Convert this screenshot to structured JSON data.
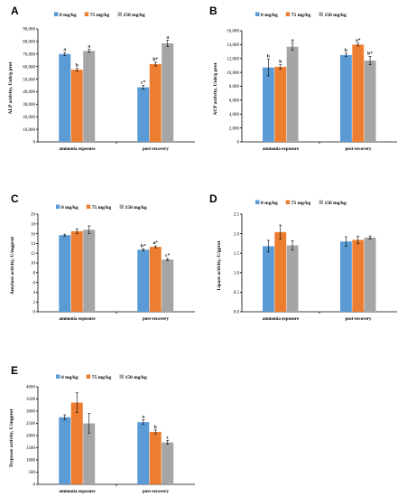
{
  "colors": {
    "series0": "#5b9bd5",
    "series1": "#ed7d31",
    "series2": "#a5a5a5"
  },
  "chart_data": [
    {
      "type": "bar",
      "panel": "A",
      "ylabel": "ALP activity, Unit/g prot",
      "categories": [
        "ammonia exposure",
        "post-recovery"
      ],
      "ylim": [
        0,
        90000
      ],
      "yticks": [
        0,
        10000,
        20000,
        30000,
        40000,
        50000,
        60000,
        70000,
        80000,
        90000
      ],
      "ytick_labels": [
        "0",
        "10,000",
        "20,000",
        "30,000",
        "40,000",
        "50,000",
        "60,000",
        "70,000",
        "80,000",
        "90,000"
      ],
      "series": [
        {
          "name": "0 mg/kg",
          "values": [
            70000,
            43500
          ],
          "errors": [
            1200,
            1500
          ],
          "labels": [
            "a",
            "c*"
          ]
        },
        {
          "name": "75 mg/kg",
          "values": [
            57500,
            62000
          ],
          "errors": [
            1200,
            1500
          ],
          "labels": [
            "b",
            "b*"
          ]
        },
        {
          "name": "150 mg/kg",
          "values": [
            72500,
            78500
          ],
          "errors": [
            1200,
            2500
          ],
          "labels": [
            "a",
            "a"
          ]
        }
      ]
    },
    {
      "type": "bar",
      "panel": "B",
      "ylabel": "ACP activity, Unit/g prot",
      "categories": [
        "ammonia exposure",
        "post-recovery"
      ],
      "ylim": [
        0,
        16000
      ],
      "yticks": [
        0,
        2000,
        4000,
        6000,
        8000,
        10000,
        12000,
        14000,
        16000
      ],
      "ytick_labels": [
        "0",
        "2,000",
        "4,000",
        "6,000",
        "8,000",
        "10,000",
        "12,000",
        "14,000",
        "16,000"
      ],
      "series": [
        {
          "name": "0 mg/kg",
          "values": [
            10700,
            12500
          ],
          "errors": [
            1200,
            250
          ],
          "labels": [
            "b",
            "b"
          ]
        },
        {
          "name": "75 mg/kg",
          "values": [
            10800,
            14000
          ],
          "errors": [
            300,
            200
          ],
          "labels": [
            "b",
            "a*"
          ]
        },
        {
          "name": "150 mg/kg",
          "values": [
            13700,
            11700
          ],
          "errors": [
            500,
            600
          ],
          "labels": [
            "a",
            "b*"
          ]
        }
      ]
    },
    {
      "type": "bar",
      "panel": "C",
      "ylabel": "Amylase activity, U/mgprot",
      "categories": [
        "ammonia exposure",
        "post-recovery"
      ],
      "ylim": [
        0,
        20
      ],
      "yticks": [
        0,
        2,
        4,
        6,
        8,
        10,
        12,
        14,
        16,
        18,
        20
      ],
      "ytick_labels": [
        "0",
        "2",
        "4",
        "6",
        "8",
        "10",
        "12",
        "14",
        "16",
        "18",
        "20"
      ],
      "series": [
        {
          "name": "0 mg/kg",
          "values": [
            15.7,
            12.7
          ],
          "errors": [
            0.2,
            0.2
          ],
          "labels": [
            "",
            "b*"
          ]
        },
        {
          "name": "75 mg/kg",
          "values": [
            16.5,
            13.3
          ],
          "errors": [
            0.5,
            0.2
          ],
          "labels": [
            "",
            "a*"
          ]
        },
        {
          "name": "150 mg/kg",
          "values": [
            16.8,
            10.7
          ],
          "errors": [
            0.8,
            0.2
          ],
          "labels": [
            "",
            "c*"
          ]
        }
      ]
    },
    {
      "type": "bar",
      "panel": "D",
      "ylabel": "Lipase activity, U/gprot",
      "categories": [
        "ammonia exposure",
        "post-recovery"
      ],
      "ylim": [
        0,
        2.5
      ],
      "yticks": [
        0,
        0.5,
        1,
        1.5,
        2,
        2.5
      ],
      "ytick_labels": [
        "0.0",
        "0.5",
        "1.0",
        "1.5",
        "2.0",
        "2.5"
      ],
      "series": [
        {
          "name": "0 mg/kg",
          "values": [
            1.68,
            1.8
          ],
          "errors": [
            0.15,
            0.12
          ],
          "labels": [
            "",
            ""
          ]
        },
        {
          "name": "75 mg/kg",
          "values": [
            2.04,
            1.84
          ],
          "errors": [
            0.18,
            0.1
          ],
          "labels": [
            "",
            ""
          ]
        },
        {
          "name": "150 mg/kg",
          "values": [
            1.7,
            1.9
          ],
          "errors": [
            0.12,
            0.04
          ],
          "labels": [
            "",
            ""
          ]
        }
      ]
    },
    {
      "type": "bar",
      "panel": "E",
      "ylabel": "Trypsase activity, U/mgprot",
      "categories": [
        "ammonia exposure",
        "post-recovery"
      ],
      "ylim": [
        0,
        4000
      ],
      "yticks": [
        0,
        500,
        1000,
        1500,
        2000,
        2500,
        3000,
        3500,
        4000
      ],
      "ytick_labels": [
        "0",
        "500",
        "1000",
        "1500",
        "2000",
        "2500",
        "3000",
        "3500",
        "4000"
      ],
      "series": [
        {
          "name": "0 mg/kg",
          "values": [
            2750,
            2550
          ],
          "errors": [
            100,
            100
          ],
          "labels": [
            "",
            "a"
          ]
        },
        {
          "name": "75 mg/kg",
          "values": [
            3350,
            2150
          ],
          "errors": [
            400,
            80
          ],
          "labels": [
            "",
            "b"
          ]
        },
        {
          "name": "150 mg/kg",
          "values": [
            2500,
            1720
          ],
          "errors": [
            400,
            80
          ],
          "labels": [
            "",
            "c"
          ]
        }
      ]
    }
  ]
}
